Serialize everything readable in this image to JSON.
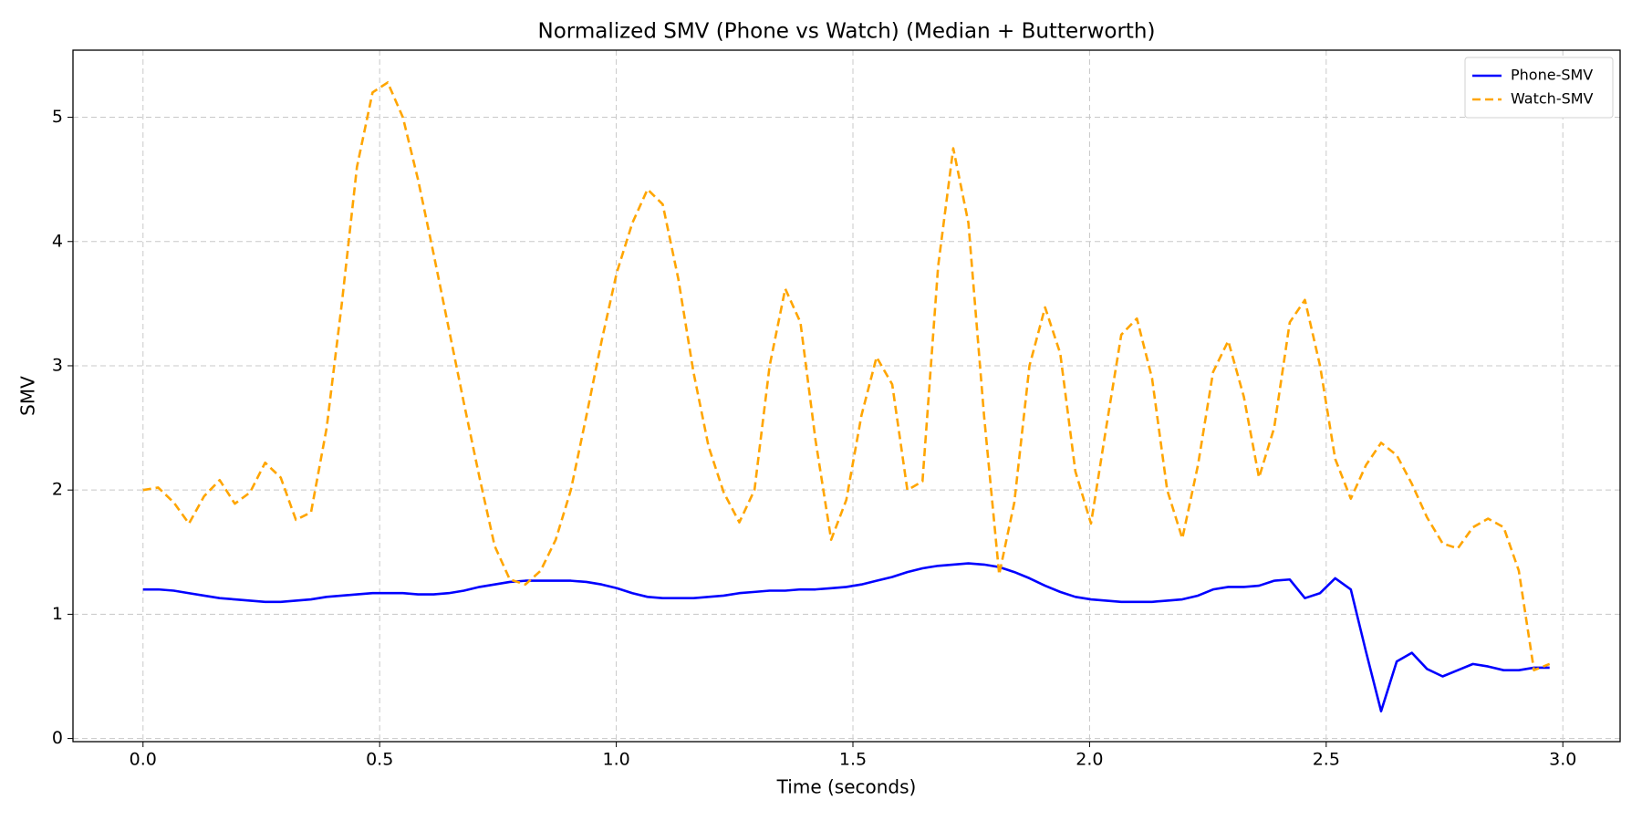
{
  "chart_data": {
    "type": "line",
    "title": "Normalized SMV (Phone vs Watch) (Median + Butterworth)",
    "x_label": "Time (seconds)",
    "y_label": "SMV",
    "x": [
      0,
      0.032,
      0.065,
      0.097,
      0.129,
      0.162,
      0.194,
      0.226,
      0.258,
      0.291,
      0.323,
      0.355,
      0.388,
      0.42,
      0.452,
      0.485,
      0.517,
      0.549,
      0.581,
      0.614,
      0.646,
      0.678,
      0.711,
      0.743,
      0.775,
      0.808,
      0.84,
      0.872,
      0.904,
      0.937,
      0.969,
      1.001,
      1.034,
      1.066,
      1.098,
      1.131,
      1.163,
      1.195,
      1.227,
      1.26,
      1.292,
      1.324,
      1.357,
      1.389,
      1.421,
      1.454,
      1.486,
      1.518,
      1.55,
      1.583,
      1.615,
      1.647,
      1.68,
      1.712,
      1.744,
      1.777,
      1.809,
      1.841,
      1.873,
      1.906,
      1.938,
      1.97,
      2.003,
      2.035,
      2.067,
      2.1,
      2.132,
      2.164,
      2.196,
      2.229,
      2.261,
      2.293,
      2.326,
      2.358,
      2.39,
      2.423,
      2.455,
      2.487,
      2.519,
      2.552,
      2.584,
      2.616,
      2.649,
      2.681,
      2.713,
      2.746,
      2.778,
      2.81,
      2.842,
      2.875,
      2.907,
      2.939,
      2.972
    ],
    "series": [
      {
        "name": "Phone-SMV",
        "color": "#0000ff",
        "dash": "solid",
        "values": [
          1.2,
          1.2,
          1.19,
          1.17,
          1.15,
          1.13,
          1.12,
          1.11,
          1.1,
          1.1,
          1.11,
          1.12,
          1.14,
          1.15,
          1.16,
          1.17,
          1.17,
          1.17,
          1.16,
          1.16,
          1.17,
          1.19,
          1.22,
          1.24,
          1.26,
          1.27,
          1.27,
          1.27,
          1.27,
          1.26,
          1.24,
          1.21,
          1.17,
          1.14,
          1.13,
          1.13,
          1.13,
          1.14,
          1.15,
          1.17,
          1.18,
          1.19,
          1.19,
          1.2,
          1.2,
          1.21,
          1.22,
          1.24,
          1.27,
          1.3,
          1.34,
          1.37,
          1.39,
          1.4,
          1.41,
          1.4,
          1.38,
          1.34,
          1.29,
          1.23,
          1.18,
          1.14,
          1.12,
          1.11,
          1.1,
          1.1,
          1.1,
          1.11,
          1.12,
          1.15,
          1.2,
          1.22,
          1.22,
          1.23,
          1.27,
          1.28,
          1.13,
          1.17,
          1.29,
          1.2,
          0.7,
          0.22,
          0.62,
          0.69,
          0.56,
          0.5,
          0.55,
          0.6,
          0.58,
          0.55,
          0.55,
          0.57,
          0.57
        ]
      },
      {
        "name": "Watch-SMV",
        "color": "#ffa500",
        "dash": "dashed",
        "values": [
          2.0,
          2.02,
          1.9,
          1.73,
          1.95,
          2.08,
          1.89,
          1.98,
          2.22,
          2.1,
          1.76,
          1.82,
          2.5,
          3.5,
          4.6,
          5.2,
          5.28,
          5.0,
          4.5,
          3.9,
          3.3,
          2.7,
          2.1,
          1.55,
          1.28,
          1.24,
          1.35,
          1.6,
          2.0,
          2.6,
          3.2,
          3.75,
          4.15,
          4.42,
          4.3,
          3.7,
          2.95,
          2.35,
          1.98,
          1.74,
          2.0,
          3.0,
          3.62,
          3.35,
          2.4,
          1.6,
          1.92,
          2.6,
          3.07,
          2.85,
          2.0,
          2.07,
          3.8,
          4.75,
          4.15,
          2.6,
          1.32,
          1.9,
          3.0,
          3.47,
          3.1,
          2.15,
          1.73,
          2.5,
          3.25,
          3.38,
          2.9,
          2.0,
          1.61,
          2.2,
          2.95,
          3.2,
          2.75,
          2.1,
          2.5,
          3.35,
          3.53,
          3.0,
          2.25,
          1.93,
          2.2,
          2.38,
          2.28,
          2.05,
          1.78,
          1.57,
          1.53,
          1.7,
          1.77,
          1.7,
          1.35,
          0.55,
          0.6
        ]
      }
    ],
    "xlim": [
      -0.148,
      3.121
    ],
    "ylim": [
      -0.025,
      5.54
    ],
    "xticks": [
      {
        "value": 0,
        "label": "0.0"
      },
      0.5,
      {
        "value": 1,
        "label": "1.0"
      },
      1.5,
      {
        "value": 2,
        "label": "2.0"
      },
      2.5,
      {
        "value": 3,
        "label": "3.0"
      }
    ],
    "yticks": [
      0,
      1,
      2,
      3,
      4,
      5
    ],
    "grid": true,
    "legend": "upper right"
  }
}
